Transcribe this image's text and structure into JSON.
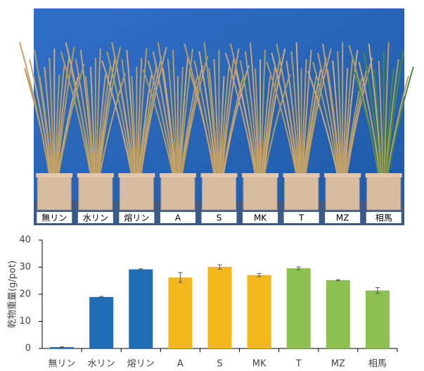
{
  "chart_data": {
    "type": "bar",
    "y_label": "乾物重量(g/pot)",
    "categories": [
      "無リン",
      "水リン",
      "熔リン",
      "A",
      "S",
      "MK",
      "T",
      "MZ",
      "相馬"
    ],
    "values": [
      0.5,
      19,
      29.2,
      26.2,
      30.1,
      27.1,
      29.6,
      25.2,
      21.4
    ],
    "errors": [
      0.1,
      0.2,
      0.2,
      1.8,
      0.8,
      0.6,
      0.5,
      0.2,
      1.1
    ],
    "colors": [
      "#1f6db5",
      "#1f6db5",
      "#1f6db5",
      "#f4b81c",
      "#f4b81c",
      "#f4b81c",
      "#8cc152",
      "#8cc152",
      "#8cc152"
    ],
    "ylim": [
      0,
      40
    ],
    "yticks": [
      0,
      10,
      20,
      30,
      40
    ],
    "grid": false
  }
}
